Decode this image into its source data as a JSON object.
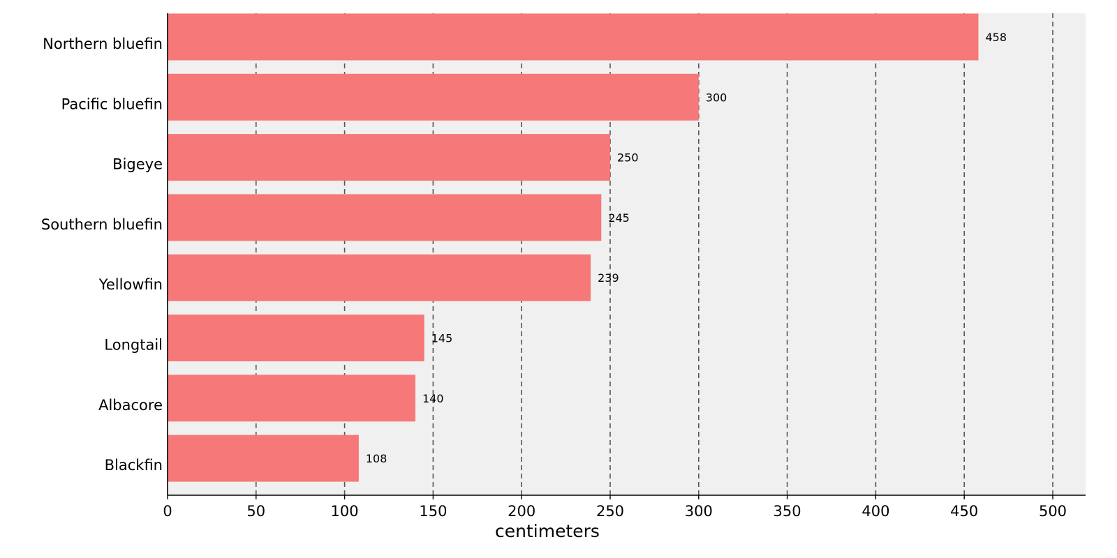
{
  "chart_data": {
    "type": "bar",
    "orientation": "horizontal",
    "categories": [
      "Northern bluefin",
      "Pacific bluefin",
      "Bigeye",
      "Southern bluefin",
      "Yellowfin",
      "Longtail",
      "Albacore",
      "Blackfin"
    ],
    "values": [
      458,
      300,
      250,
      245,
      239,
      145,
      140,
      108
    ],
    "title": "",
    "xlabel": "centimeters",
    "ylabel": "",
    "xlim": [
      0,
      520
    ],
    "xticks": [
      0,
      50,
      100,
      150,
      200,
      250,
      300,
      350,
      400,
      450,
      500
    ],
    "grid": "vertical dashed",
    "bar_color": "#f77878",
    "background_color": "#f0f0f0",
    "grid_color": "#555555"
  }
}
